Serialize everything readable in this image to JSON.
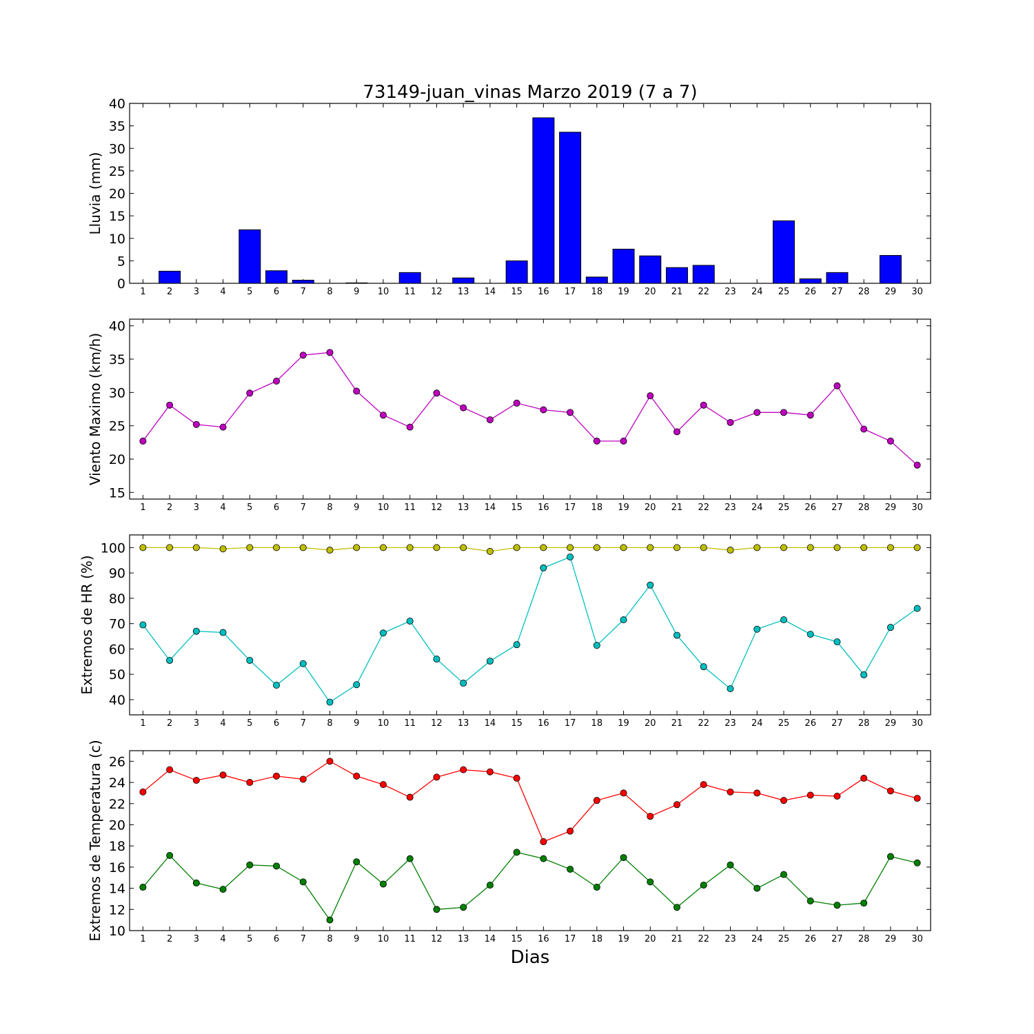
{
  "title": "73149-juan_vinas Marzo 2019  (7 a 7)",
  "xlabel": "Dias",
  "days": [
    1,
    2,
    3,
    4,
    5,
    6,
    7,
    8,
    9,
    10,
    11,
    12,
    13,
    14,
    15,
    16,
    17,
    18,
    19,
    20,
    21,
    22,
    23,
    24,
    25,
    26,
    27,
    28,
    29,
    30
  ],
  "chart_data": [
    {
      "type": "bar",
      "ylabel": "Lluvia (mm)",
      "ylim": [
        0,
        40
      ],
      "yticks": [
        0,
        5,
        10,
        15,
        20,
        25,
        30,
        35,
        40
      ],
      "colors": {
        "fill": "#0000ff",
        "edge": "#000000"
      },
      "categories": [
        1,
        2,
        3,
        4,
        5,
        6,
        7,
        8,
        9,
        10,
        11,
        12,
        13,
        14,
        15,
        16,
        17,
        18,
        19,
        20,
        21,
        22,
        23,
        24,
        25,
        26,
        27,
        28,
        29,
        30
      ],
      "values": [
        0,
        2.7,
        0,
        0,
        11.9,
        2.8,
        0.7,
        0,
        0.1,
        0,
        2.4,
        0,
        1.2,
        0,
        5.0,
        36.8,
        33.6,
        1.4,
        7.6,
        6.1,
        3.5,
        4.0,
        0,
        0,
        13.9,
        1.0,
        2.4,
        0,
        6.2,
        0
      ]
    },
    {
      "type": "line",
      "ylabel": "Viento Maximo (km/h)",
      "ylim": [
        14,
        41
      ],
      "yticks": [
        15,
        20,
        25,
        30,
        35,
        40
      ],
      "x": [
        1,
        2,
        3,
        4,
        5,
        6,
        7,
        8,
        9,
        10,
        11,
        12,
        13,
        14,
        15,
        16,
        17,
        18,
        19,
        20,
        21,
        22,
        23,
        24,
        25,
        26,
        27,
        28,
        29,
        30
      ],
      "series": [
        {
          "color": "#bf00bf",
          "values": [
            22.7,
            28.1,
            25.2,
            24.8,
            29.9,
            31.7,
            35.6,
            36.0,
            30.2,
            26.6,
            24.8,
            29.9,
            27.7,
            25.9,
            28.4,
            27.4,
            27.0,
            22.7,
            22.7,
            29.5,
            24.1,
            28.1,
            25.5,
            27.0,
            27.0,
            26.6,
            31.0,
            24.5,
            22.7,
            19.1
          ]
        }
      ]
    },
    {
      "type": "line",
      "ylabel": "Extremos de HR (%)",
      "ylim": [
        34,
        105
      ],
      "yticks": [
        40,
        50,
        60,
        70,
        80,
        90,
        100
      ],
      "x": [
        1,
        2,
        3,
        4,
        5,
        6,
        7,
        8,
        9,
        10,
        11,
        12,
        13,
        14,
        15,
        16,
        17,
        18,
        19,
        20,
        21,
        22,
        23,
        24,
        25,
        26,
        27,
        28,
        29,
        30
      ],
      "series": [
        {
          "color": "#bfbf00",
          "values": [
            100,
            100,
            100,
            99.5,
            100,
            100,
            100,
            99,
            100,
            100,
            100,
            100,
            100,
            98.5,
            100,
            100,
            100,
            100,
            100,
            100,
            100,
            100,
            99,
            100,
            100,
            100,
            100,
            100,
            100,
            100
          ]
        },
        {
          "color": "#00bfbf",
          "values": [
            69.5,
            55.5,
            67,
            66.5,
            55.5,
            45.7,
            54.2,
            39,
            45.9,
            66.3,
            71,
            56,
            46.5,
            55.2,
            61.7,
            92,
            96.3,
            61.4,
            71.5,
            85.2,
            65.4,
            53,
            44.3,
            67.8,
            71.5,
            65.8,
            62.8,
            49.8,
            68.5,
            76
          ]
        }
      ]
    },
    {
      "type": "line",
      "ylabel": "Extremos de Temperatura (c)",
      "ylim": [
        10,
        27
      ],
      "yticks": [
        10,
        12,
        14,
        16,
        18,
        20,
        22,
        24,
        26
      ],
      "x": [
        1,
        2,
        3,
        4,
        5,
        6,
        7,
        8,
        9,
        10,
        11,
        12,
        13,
        14,
        15,
        16,
        17,
        18,
        19,
        20,
        21,
        22,
        23,
        24,
        25,
        26,
        27,
        28,
        29,
        30
      ],
      "series": [
        {
          "color": "#ff0000",
          "values": [
            23.1,
            25.2,
            24.2,
            24.7,
            24.0,
            24.6,
            24.3,
            26.0,
            24.6,
            23.8,
            22.6,
            24.5,
            25.2,
            25.0,
            24.4,
            18.4,
            19.4,
            22.3,
            23.0,
            20.8,
            21.9,
            23.8,
            23.1,
            23.0,
            22.3,
            22.8,
            22.7,
            24.4,
            23.2,
            22.5
          ]
        },
        {
          "color": "#007f00",
          "values": [
            14.1,
            17.1,
            14.5,
            13.9,
            16.2,
            16.1,
            14.6,
            11.0,
            16.5,
            14.4,
            16.8,
            12.0,
            12.2,
            14.3,
            17.4,
            16.8,
            15.8,
            14.1,
            16.9,
            14.6,
            12.2,
            14.3,
            16.2,
            14.0,
            15.3,
            12.8,
            12.4,
            12.6,
            17.0,
            16.4
          ]
        }
      ]
    }
  ]
}
